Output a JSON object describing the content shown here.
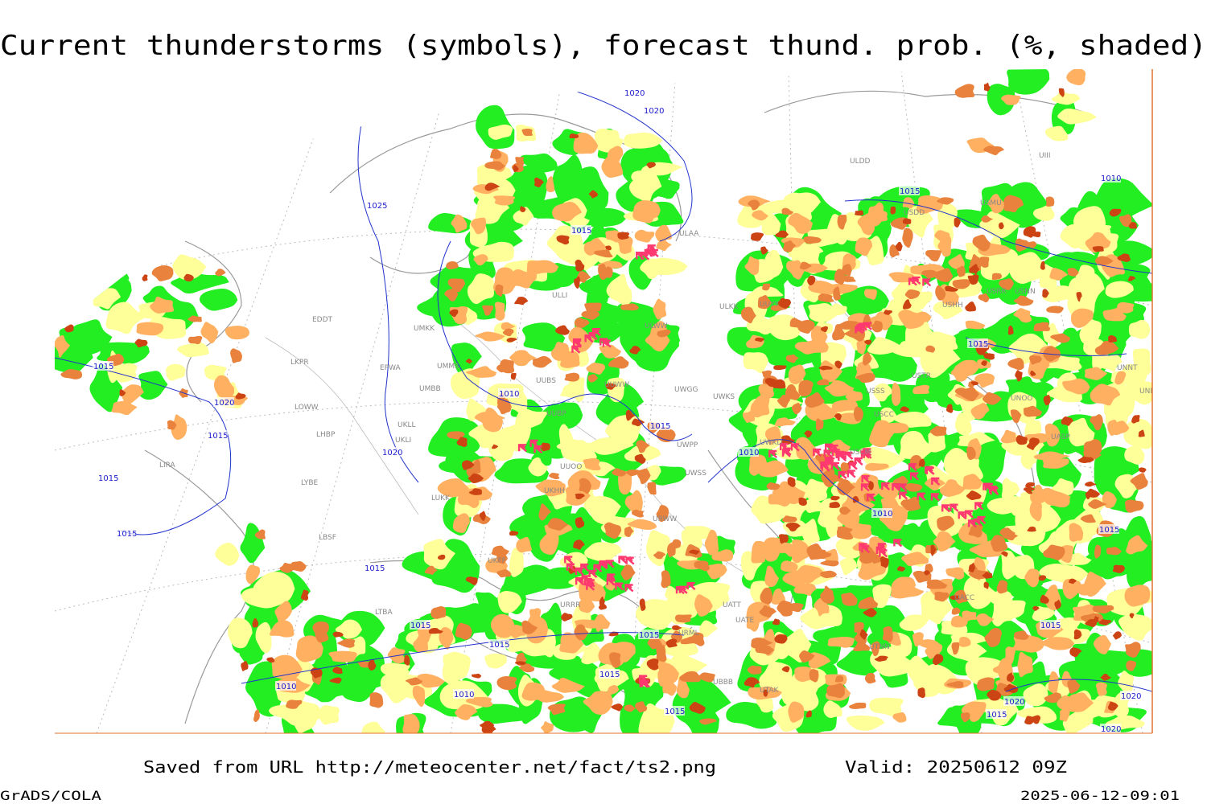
{
  "header": {
    "title": "Current thunderstorms (symbols), forecast thund. prob. (%, shaded)"
  },
  "map": {
    "stations": [
      "ULDD",
      "ULAA",
      "ULLI",
      "ULKK",
      "UUYY",
      "ULWW",
      "UMKK",
      "EDDT",
      "EPWA",
      "UMMS",
      "LKPR",
      "UMBB",
      "UUBS",
      "UUWW",
      "UWGG",
      "UWKS",
      "LOWW",
      "UUBP",
      "UKLL",
      "UKLI",
      "LHBP",
      "UWPP",
      "UUOO",
      "LIRA",
      "LYBE",
      "UWSS",
      "LUKK",
      "UKHH",
      "UWKD",
      "URWW",
      "LBSF",
      "UKFF",
      "URRR",
      "UATT",
      "UATE",
      "URML",
      "LTBA",
      "UBBB",
      "UTAK",
      "UTNN",
      "UACC",
      "USSS",
      "USTR",
      "USCC",
      "USCM",
      "UNOO",
      "UNNT",
      "UNBB",
      "UASP",
      "USNN",
      "USRR",
      "USMU",
      "USDD",
      "UIII",
      "USHH"
    ],
    "isobars": [
      1020,
      1020,
      1025,
      1015,
      1015,
      1020,
      1015,
      1015,
      1015,
      1010,
      1015,
      1020,
      1010,
      1010,
      1015,
      1015,
      1015,
      1015,
      1015,
      1010,
      1010,
      1015,
      1015,
      1010,
      1015,
      1015,
      1015,
      1020,
      1020,
      1015,
      1020
    ]
  },
  "footer": {
    "source": "Saved from URL http://meteocenter.net/fact/ts2.png",
    "valid": "Valid: 20250612 09Z",
    "software": "GrADS/COLA",
    "timestamp": "2025-06-12-09:01"
  }
}
